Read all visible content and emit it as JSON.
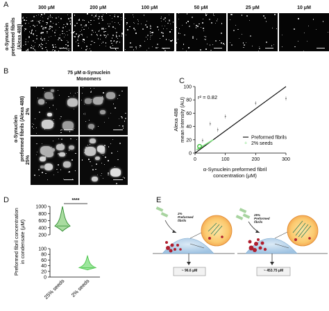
{
  "panels": {
    "a": {
      "label": "A",
      "ylabel": "α-Synuclein\npreformed fibrils\n(Alexa 488)",
      "concentrations": [
        "300 μM",
        "200 μM",
        "100 μM",
        "50 μM",
        "25 μM",
        "10 μM"
      ]
    },
    "b": {
      "label": "B",
      "title": "75 μM α-Synuclein\nMonomers",
      "ylabel": "α-Synuclein\npreformed fibrils (Alexa 488)",
      "rows": [
        "2%",
        "25%"
      ]
    },
    "c": {
      "label": "C"
    },
    "d": {
      "label": "D",
      "significance": "****"
    },
    "e": {
      "label": "E",
      "left": {
        "caption": "2%\nPreformed\nfibrils",
        "result": "~ 96.6 μM"
      },
      "right": {
        "caption": "25%\nPreformed\nfibrils",
        "result": "~ 453.75 μM"
      }
    }
  },
  "chart_data": [
    {
      "type": "scatter",
      "panel": "C",
      "annotation": "r² = 0.82",
      "xlabel": "α-Synuclein preformed fibril\nconcentration (μM)",
      "ylabel": "Alexa 488\nmean intensity (AU)",
      "xlim": [
        0,
        300
      ],
      "ylim": [
        0,
        100
      ],
      "xticks": [
        0,
        100,
        200,
        300
      ],
      "yticks": [
        0,
        20,
        40,
        60,
        80,
        100
      ],
      "series": [
        {
          "name": "Preformed fibrils",
          "kind": "line",
          "color": "#000000",
          "x": [
            0,
            300
          ],
          "y": [
            0,
            100
          ]
        },
        {
          "name": "2% seeds",
          "kind": "scatter",
          "color": "#7be07b",
          "x": [
            10,
            25,
            50,
            75,
            100,
            200,
            300
          ],
          "y": [
            6,
            19,
            44,
            35,
            55,
            75,
            82
          ]
        }
      ]
    },
    {
      "type": "violin",
      "panel": "D",
      "ylabel": "Preformed fibril concentration\nin condensate (μM)",
      "categories": [
        "25% seeds",
        "2% seeds"
      ],
      "upper_axis": {
        "ylim": [
          200,
          1000
        ],
        "yticks": [
          200,
          400,
          600,
          800,
          1000
        ]
      },
      "lower_axis": {
        "ylim": [
          0,
          100
        ],
        "yticks": [
          0,
          20,
          40,
          60,
          80,
          100
        ]
      },
      "series": [
        {
          "name": "25% seeds",
          "color": "#2e8b2e",
          "min": 300,
          "median": 450,
          "max": 1000
        },
        {
          "name": "2% seeds",
          "color": "#49c449",
          "min": 25,
          "median": 33,
          "max": 75
        }
      ]
    }
  ]
}
